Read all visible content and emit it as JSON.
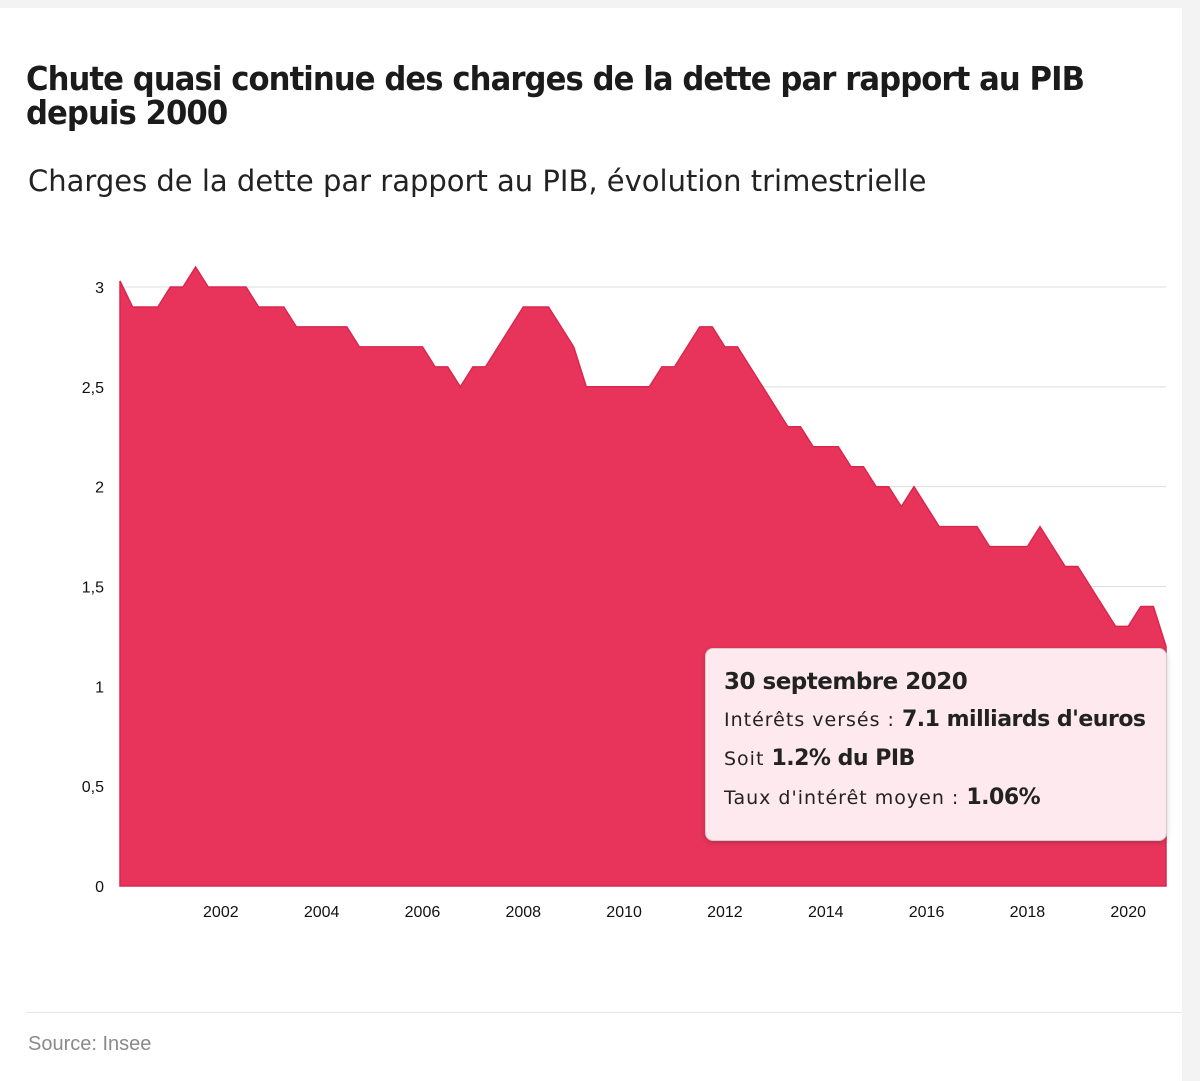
{
  "title": "Chute quasi continue des charges de la dette par rapport au PIB depuis 2000",
  "subtitle": "Charges de la dette par rapport au PIB, évolution trimestrielle",
  "source": "Source: Insee",
  "colors": {
    "area": "#e8345a",
    "grid": "#dddddd",
    "tooltip_bg": "#fde9ee"
  },
  "tooltip": {
    "date": "30 septembre 2020",
    "line1_label": "Intérêts versés : ",
    "line1_value": "7.1 milliards d'euros",
    "line2_label": "Soit ",
    "line2_value": "1.2% du PIB",
    "line3_label": "Taux d'intérêt moyen : ",
    "line3_value": "1.06%"
  },
  "chart_data": {
    "type": "area",
    "title": "Chute quasi continue des charges de la dette par rapport au PIB depuis 2000",
    "subtitle": "Charges de la dette par rapport au PIB, évolution trimestrielle",
    "ylim": [
      0,
      3.1
    ],
    "y_ticks": [
      0,
      0.5,
      1,
      1.5,
      2,
      2.5,
      3
    ],
    "y_tick_labels": [
      "0",
      "0,5",
      "1",
      "1,5",
      "2",
      "2,5",
      "3"
    ],
    "xlim": [
      2000.0,
      2020.75
    ],
    "x_ticks": [
      2002,
      2004,
      2006,
      2008,
      2010,
      2012,
      2014,
      2016,
      2018,
      2020
    ],
    "x_tick_labels": [
      "2002",
      "2004",
      "2006",
      "2008",
      "2010",
      "2012",
      "2014",
      "2016",
      "2018",
      "2020"
    ],
    "grid": true,
    "legend": "none",
    "series": [
      {
        "x": [
          2000.0,
          2000.25,
          2000.5,
          2000.75,
          2001.0,
          2001.25,
          2001.5,
          2001.75,
          2002.0,
          2002.25,
          2002.5,
          2002.75,
          2003.0,
          2003.25,
          2003.5,
          2003.75,
          2004.0,
          2004.25,
          2004.5,
          2004.75,
          2005.0,
          2005.25,
          2005.5,
          2005.75,
          2006.0,
          2006.25,
          2006.5,
          2006.75,
          2007.0,
          2007.25,
          2007.5,
          2007.75,
          2008.0,
          2008.25,
          2008.5,
          2008.75,
          2009.0,
          2009.25,
          2009.5,
          2009.75,
          2010.0,
          2010.25,
          2010.5,
          2010.75,
          2011.0,
          2011.25,
          2011.5,
          2011.75,
          2012.0,
          2012.25,
          2012.5,
          2012.75,
          2013.0,
          2013.25,
          2013.5,
          2013.75,
          2014.0,
          2014.25,
          2014.5,
          2014.75,
          2015.0,
          2015.25,
          2015.5,
          2015.75,
          2016.0,
          2016.25,
          2016.5,
          2016.75,
          2017.0,
          2017.25,
          2017.5,
          2017.75,
          2018.0,
          2018.25,
          2018.5,
          2018.75,
          2019.0,
          2019.25,
          2019.5,
          2019.75,
          2020.0,
          2020.25,
          2020.5,
          2020.75
        ],
        "values": [
          3.03,
          2.9,
          2.9,
          2.9,
          3.0,
          3.0,
          3.1,
          3.0,
          3.0,
          3.0,
          3.0,
          2.9,
          2.9,
          2.9,
          2.8,
          2.8,
          2.8,
          2.8,
          2.8,
          2.7,
          2.7,
          2.7,
          2.7,
          2.7,
          2.7,
          2.6,
          2.6,
          2.5,
          2.6,
          2.6,
          2.7,
          2.8,
          2.9,
          2.9,
          2.9,
          2.8,
          2.7,
          2.5,
          2.5,
          2.5,
          2.5,
          2.5,
          2.5,
          2.6,
          2.6,
          2.7,
          2.8,
          2.8,
          2.7,
          2.7,
          2.6,
          2.5,
          2.4,
          2.3,
          2.3,
          2.2,
          2.2,
          2.2,
          2.1,
          2.1,
          2.0,
          2.0,
          1.9,
          2.0,
          1.9,
          1.8,
          1.8,
          1.8,
          1.8,
          1.7,
          1.7,
          1.7,
          1.7,
          1.8,
          1.7,
          1.6,
          1.6,
          1.5,
          1.4,
          1.3,
          1.3,
          1.4,
          1.4,
          1.2
        ]
      }
    ]
  }
}
